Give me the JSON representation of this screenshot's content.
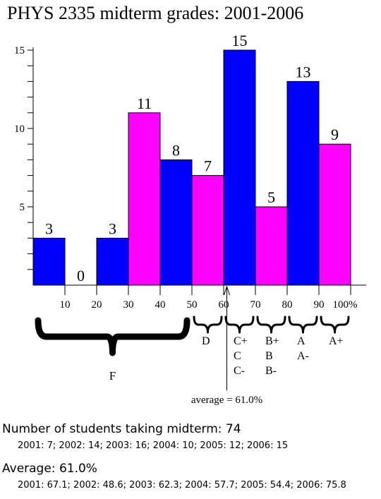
{
  "chart_data": {
    "type": "bar",
    "title": "PHYS 2335 midterm grades: 2001-2006",
    "xlabel": "",
    "ylabel": "",
    "ylim": [
      0,
      15
    ],
    "x_ticks": [
      "10",
      "20",
      "30",
      "40",
      "50",
      "60",
      "70",
      "80",
      "90",
      "100%"
    ],
    "y_ticks": [
      "5",
      "10",
      "15"
    ],
    "bins": [
      {
        "range": [
          0,
          10
        ],
        "value": 3,
        "label": "3",
        "color": "#0000ff"
      },
      {
        "range": [
          10,
          20
        ],
        "value": 0,
        "label": "0",
        "color": "#ff00ff"
      },
      {
        "range": [
          20,
          30
        ],
        "value": 3,
        "label": "3",
        "color": "#0000ff"
      },
      {
        "range": [
          30,
          40
        ],
        "value": 11,
        "label": "11",
        "color": "#ff00ff"
      },
      {
        "range": [
          40,
          50
        ],
        "value": 8,
        "label": "8",
        "color": "#0000ff"
      },
      {
        "range": [
          50,
          60
        ],
        "value": 7,
        "label": "7",
        "color": "#ff00ff"
      },
      {
        "range": [
          60,
          70
        ],
        "value": 15,
        "label": "15",
        "color": "#0000ff"
      },
      {
        "range": [
          70,
          80
        ],
        "value": 5,
        "label": "5",
        "color": "#ff00ff"
      },
      {
        "range": [
          80,
          90
        ],
        "value": 13,
        "label": "13",
        "color": "#0000ff"
      },
      {
        "range": [
          90,
          100
        ],
        "value": 9,
        "label": "9",
        "color": "#ff00ff"
      }
    ],
    "grade_bands": [
      {
        "range": [
          0,
          50
        ],
        "lines": [
          "F"
        ]
      },
      {
        "range": [
          50,
          60
        ],
        "lines": [
          "D"
        ]
      },
      {
        "range": [
          60,
          70
        ],
        "lines": [
          "C+",
          "C",
          "C-"
        ]
      },
      {
        "range": [
          70,
          80
        ],
        "lines": [
          "B+",
          "B",
          "B-"
        ]
      },
      {
        "range": [
          80,
          90
        ],
        "lines": [
          "A",
          "A-"
        ]
      },
      {
        "range": [
          90,
          100
        ],
        "lines": [
          "A+"
        ]
      }
    ],
    "average": {
      "value": 61.0,
      "label": "average = 61.0%"
    }
  },
  "summary": {
    "count_line": "Number of students taking midterm: 74",
    "count_detail": "2001: 7; 2002: 14; 2003: 16; 2004: 10; 2005: 12; 2006: 15",
    "average_line": "Average: 61.0%",
    "average_detail": "2001: 67.1; 2002: 48.6; 2003: 62.3; 2004: 57.7; 2005: 54.4; 2006: 75.8"
  }
}
